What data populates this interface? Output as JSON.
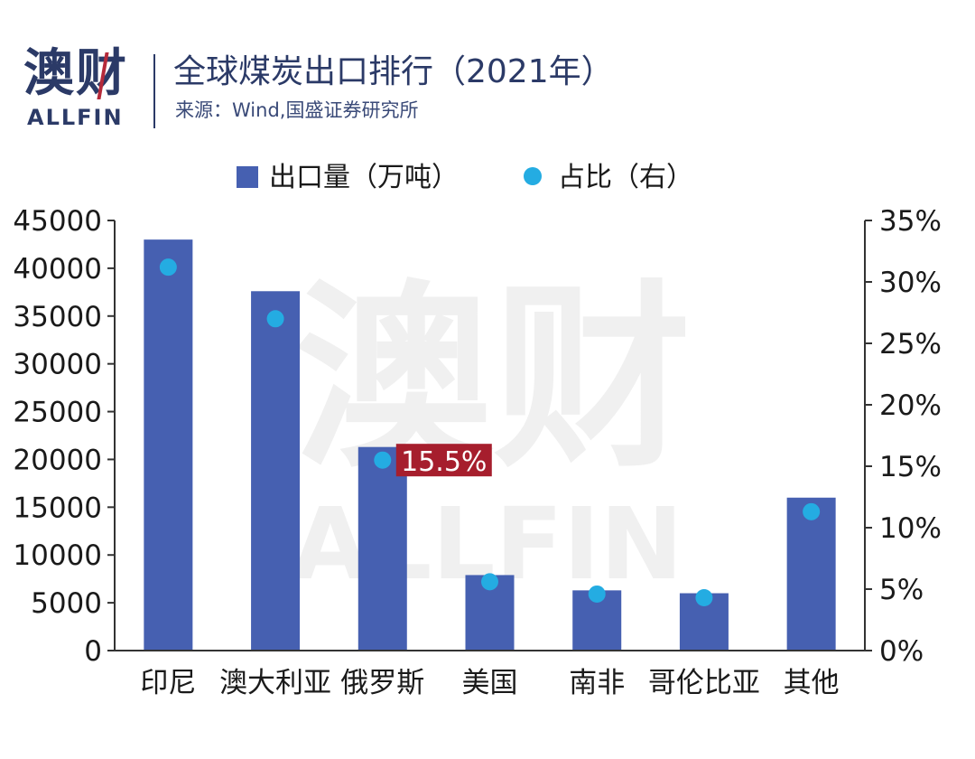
{
  "header": {
    "logo_cn": "澳财",
    "logo_en": "ALLFIN",
    "title": "全球煤炭出口排行（2021年）",
    "source": "来源：Wind,国盛证券研究所"
  },
  "watermark": {
    "cn": "澳财",
    "en": "ALLFIN"
  },
  "colors": {
    "bar": "#4660b1",
    "dot": "#24ace2",
    "callout": "#a61e2d",
    "axis": "#333333",
    "text": "#1a1a1a",
    "brand": "#2b3a67"
  },
  "chart_data": {
    "type": "bar",
    "categories": [
      "印尼",
      "澳大利亚",
      "俄罗斯",
      "美国",
      "南非",
      "哥伦比亚",
      "其他"
    ],
    "series": [
      {
        "name": "出口量（万吨）",
        "type": "bar",
        "axis": "left",
        "values": [
          43000,
          37600,
          21300,
          7900,
          6300,
          6000,
          16000
        ]
      },
      {
        "name": "占比（右）",
        "type": "scatter",
        "axis": "right",
        "values": [
          31.2,
          27.0,
          15.5,
          5.6,
          4.6,
          4.3,
          11.3
        ]
      }
    ],
    "y_left": {
      "min": 0,
      "max": 45000,
      "ticks": [
        "0",
        "5000",
        "10000",
        "15000",
        "20000",
        "25000",
        "30000",
        "35000",
        "40000",
        "45000"
      ]
    },
    "y_right": {
      "min": 0,
      "max": 35,
      "ticks": [
        "0%",
        "5%",
        "10%",
        "15%",
        "20%",
        "25%",
        "30%",
        "35%"
      ]
    },
    "annotation": {
      "category_index": 2,
      "text": "15.5%"
    },
    "legend_position": "top-center",
    "grid": false
  }
}
